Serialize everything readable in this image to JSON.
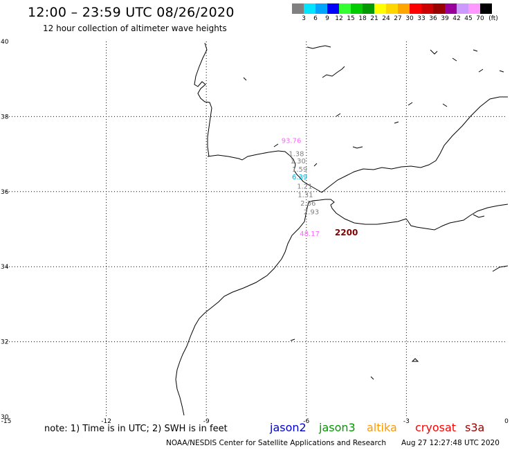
{
  "header": {
    "title": "12:00 – 23:59 UTC 08/26/2020",
    "subtitle": "12 hour collection of altimeter wave heights"
  },
  "legend": {
    "unit": "(ft)",
    "bins": [
      {
        "label": "3",
        "color": "#808080"
      },
      {
        "label": "6",
        "color": "#00e5ff"
      },
      {
        "label": "9",
        "color": "#00a5ff"
      },
      {
        "label": "12",
        "color": "#0000ff"
      },
      {
        "label": "15",
        "color": "#33ff33"
      },
      {
        "label": "18",
        "color": "#00cc00"
      },
      {
        "label": "21",
        "color": "#009900"
      },
      {
        "label": "24",
        "color": "#ffff00"
      },
      {
        "label": "27",
        "color": "#ffd700"
      },
      {
        "label": "30",
        "color": "#ffa500"
      },
      {
        "label": "33",
        "color": "#ff0000"
      },
      {
        "label": "36",
        "color": "#cc0000"
      },
      {
        "label": "39",
        "color": "#990000"
      },
      {
        "label": "42",
        "color": "#990099"
      },
      {
        "label": "45",
        "color": "#cc99ff"
      },
      {
        "label": "70",
        "color": "#ff99ff"
      },
      {
        "label": "",
        "color": "#000000"
      }
    ]
  },
  "map": {
    "projection": "equirectangular",
    "lon_range": [
      -15,
      0
    ],
    "lat_range": [
      30,
      40
    ],
    "gridlines": "dotted",
    "lon_ticks": [
      {
        "value": -15,
        "label": "-15"
      },
      {
        "value": -12,
        "label": "-12"
      },
      {
        "value": -9,
        "label": "-9"
      },
      {
        "value": -6,
        "label": "-6"
      },
      {
        "value": -3,
        "label": "-3"
      },
      {
        "value": 0,
        "label": "0"
      }
    ],
    "lat_ticks": [
      {
        "value": 30,
        "label": "30"
      },
      {
        "value": 32,
        "label": "32"
      },
      {
        "value": 34,
        "label": "34"
      },
      {
        "value": 36,
        "label": "36"
      },
      {
        "value": 38,
        "label": "38"
      },
      {
        "value": 40,
        "label": "40"
      }
    ],
    "wave_height_labels": [
      {
        "text": "93.76",
        "lon": -6.45,
        "lat": 37.3,
        "color": "#ff66ff"
      },
      {
        "text": "1.38",
        "lon": -6.3,
        "lat": 36.95,
        "color": "#808080"
      },
      {
        "text": "1.30",
        "lon": -6.25,
        "lat": 36.75,
        "color": "#808080"
      },
      {
        "text": "1.59",
        "lon": -6.2,
        "lat": 36.53,
        "color": "#808080"
      },
      {
        "text": "6.39",
        "lon": -6.2,
        "lat": 36.33,
        "color": "#00b0e0"
      },
      {
        "text": "1.21",
        "lon": -6.05,
        "lat": 36.08,
        "color": "#808080"
      },
      {
        "text": "1.31",
        "lon": -6.03,
        "lat": 35.85,
        "color": "#808080"
      },
      {
        "text": "2.36",
        "lon": -5.95,
        "lat": 35.63,
        "color": "#808080"
      },
      {
        "text": "2.93",
        "lon": -5.85,
        "lat": 35.4,
        "color": "#808080"
      },
      {
        "text": "48.17",
        "lon": -5.9,
        "lat": 34.82,
        "color": "#ff66ff"
      }
    ],
    "pass_times": [
      {
        "text": "2200",
        "lon": -4.8,
        "lat": 34.83,
        "color": "#800000"
      }
    ]
  },
  "footer": {
    "note": "note: 1) Time is in UTC; 2) SWH is in feet",
    "missions": [
      {
        "name": "jason2",
        "color": "#0000cc"
      },
      {
        "name": "jason3",
        "color": "#009900"
      },
      {
        "name": "altika",
        "color": "#ff9900"
      },
      {
        "name": "cryosat",
        "color": "#ff0000"
      },
      {
        "name": "s3a",
        "color": "#990000"
      }
    ],
    "credit": "NOAA/NESDIS Center for Satellite Applications and Research",
    "timestamp": "Aug 27 12:27:48 UTC 2020"
  }
}
